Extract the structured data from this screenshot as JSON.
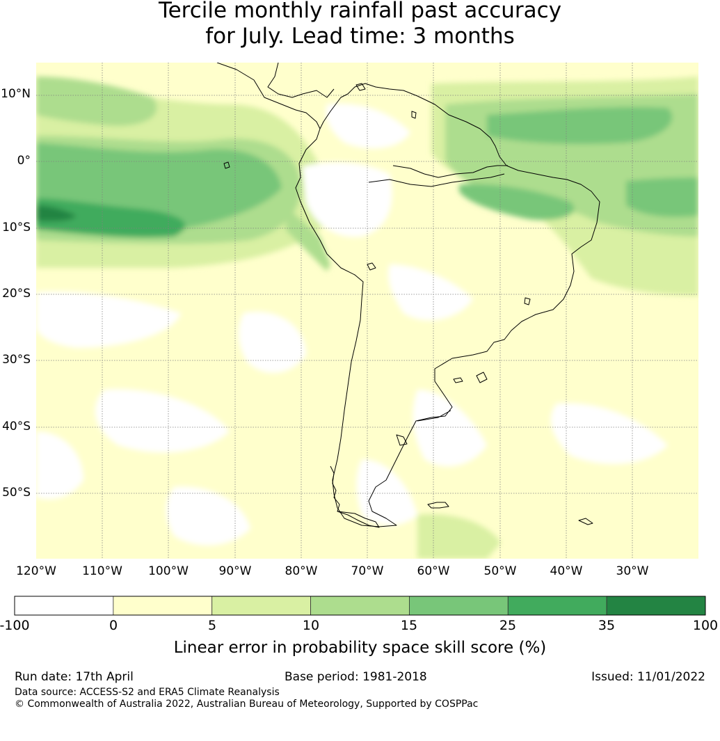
{
  "title": {
    "line1": "Tercile monthly rainfall past accuracy",
    "line2": "for July. Lead time: 3 months"
  },
  "map": {
    "lat_labels": [
      "10°N",
      "0°",
      "10°S",
      "20°S",
      "30°S",
      "40°S",
      "50°S"
    ],
    "lon_labels": [
      "120°W",
      "110°W",
      "100°W",
      "90°W",
      "80°W",
      "70°W",
      "60°W",
      "50°W",
      "40°W",
      "30°W"
    ],
    "colors": {
      "ocean_base": "#ffffcc",
      "land_base": "#ffffcc",
      "coastline": "#000000",
      "grid": "#808080"
    }
  },
  "colorbar": {
    "ticks": [
      "-100",
      "0",
      "5",
      "10",
      "15",
      "25",
      "35",
      "100"
    ],
    "bins": [
      {
        "from": -100,
        "to": 0,
        "color": "#ffffff"
      },
      {
        "from": 0,
        "to": 5,
        "color": "#ffffcc"
      },
      {
        "from": 5,
        "to": 10,
        "color": "#d9f0a3"
      },
      {
        "from": 10,
        "to": 15,
        "color": "#addd8e"
      },
      {
        "from": 15,
        "to": 25,
        "color": "#78c679"
      },
      {
        "from": 25,
        "to": 35,
        "color": "#41ab5d"
      },
      {
        "from": 35,
        "to": 100,
        "color": "#238443"
      }
    ],
    "label": "Linear error in probability space skill score (%)"
  },
  "footer": {
    "run_date": "Run date: 17th April",
    "base_period": "Base period: 1981-2018",
    "issued": "Issued: 11/01/2022",
    "data_source": "Data source: ACCESS-S2 and ERA5 Climate Reanalysis",
    "copyright": "© Commonwealth of Australia 2022, Australian Bureau of Meteorology, Supported by COSPPac"
  }
}
